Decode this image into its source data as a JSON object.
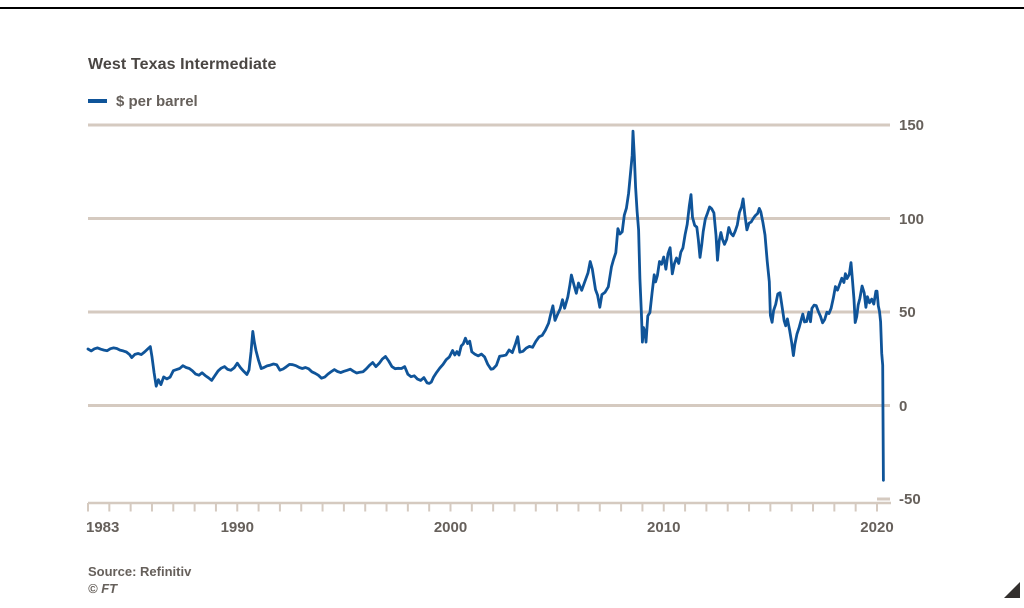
{
  "header": {
    "title": "West Texas Intermediate",
    "legend_label": "$ per barrel"
  },
  "footer": {
    "source": "Source: Refinitiv",
    "copyright": "© FT"
  },
  "colors": {
    "line": "#0f5499",
    "grid": "#d5cac0",
    "text": "#66605b",
    "title_text": "#4a4643",
    "top_rule": "#000000",
    "expand_icon": "#33302e"
  },
  "chart_data": {
    "type": "line",
    "title": "West Texas Intermediate",
    "series_name": "$ per barrel",
    "xlabel": "",
    "ylabel": "$ per barrel",
    "ylim": [
      -50,
      150
    ],
    "xlim": [
      1983,
      2020.6
    ],
    "grid": true,
    "legend_position": "top-left",
    "yticks": [
      {
        "label": "150",
        "value": 150,
        "grid": true
      },
      {
        "label": "100",
        "value": 100,
        "grid": true
      },
      {
        "label": "50",
        "value": 50,
        "grid": true
      },
      {
        "label": "0",
        "value": 0,
        "grid": true
      },
      {
        "label": "-50",
        "value": -50,
        "grid": false
      }
    ],
    "xticks": [
      {
        "label": "1983",
        "value": 1983,
        "align": "left"
      },
      {
        "label": "1990",
        "value": 1990,
        "align": "center"
      },
      {
        "label": "2000",
        "value": 2000,
        "align": "center"
      },
      {
        "label": "2010",
        "value": 2010,
        "align": "center"
      },
      {
        "label": "2020",
        "value": 2020,
        "align": "center"
      }
    ],
    "minor_tick_years": {
      "start": 1983,
      "end": 2020,
      "step": 1
    },
    "points": [
      [
        1983.0,
        30.2
      ],
      [
        1983.15,
        29.2
      ],
      [
        1983.3,
        30.3
      ],
      [
        1983.45,
        30.8
      ],
      [
        1983.6,
        30.1
      ],
      [
        1983.75,
        29.6
      ],
      [
        1983.9,
        29.3
      ],
      [
        1984.05,
        30.4
      ],
      [
        1984.2,
        30.8
      ],
      [
        1984.35,
        30.5
      ],
      [
        1984.5,
        29.6
      ],
      [
        1984.65,
        29.2
      ],
      [
        1984.8,
        28.6
      ],
      [
        1984.95,
        27.2
      ],
      [
        1985.05,
        25.6
      ],
      [
        1985.2,
        27.3
      ],
      [
        1985.35,
        27.8
      ],
      [
        1985.5,
        27.2
      ],
      [
        1985.65,
        28.6
      ],
      [
        1985.8,
        30.2
      ],
      [
        1985.92,
        31.5
      ],
      [
        1986.0,
        26.0
      ],
      [
        1986.1,
        17.5
      ],
      [
        1986.2,
        10.3
      ],
      [
        1986.3,
        13.8
      ],
      [
        1986.42,
        11.2
      ],
      [
        1986.55,
        15.3
      ],
      [
        1986.7,
        14.2
      ],
      [
        1986.85,
        15.2
      ],
      [
        1987.0,
        18.6
      ],
      [
        1987.15,
        19.2
      ],
      [
        1987.3,
        19.8
      ],
      [
        1987.45,
        21.3
      ],
      [
        1987.6,
        20.3
      ],
      [
        1987.75,
        19.8
      ],
      [
        1987.9,
        18.5
      ],
      [
        1988.05,
        16.8
      ],
      [
        1988.2,
        16.2
      ],
      [
        1988.35,
        17.5
      ],
      [
        1988.5,
        16.0
      ],
      [
        1988.65,
        14.8
      ],
      [
        1988.8,
        13.4
      ],
      [
        1988.95,
        16.0
      ],
      [
        1989.1,
        18.5
      ],
      [
        1989.25,
        20.0
      ],
      [
        1989.4,
        20.8
      ],
      [
        1989.55,
        19.3
      ],
      [
        1989.7,
        18.8
      ],
      [
        1989.85,
        20.1
      ],
      [
        1990.0,
        22.6
      ],
      [
        1990.15,
        20.2
      ],
      [
        1990.3,
        18.3
      ],
      [
        1990.45,
        16.6
      ],
      [
        1990.55,
        19.0
      ],
      [
        1990.65,
        29.0
      ],
      [
        1990.73,
        39.6
      ],
      [
        1990.8,
        34.0
      ],
      [
        1990.88,
        29.3
      ],
      [
        1991.0,
        24.0
      ],
      [
        1991.12,
        19.8
      ],
      [
        1991.25,
        20.3
      ],
      [
        1991.4,
        21.2
      ],
      [
        1991.55,
        21.6
      ],
      [
        1991.7,
        22.2
      ],
      [
        1991.85,
        21.8
      ],
      [
        1992.0,
        18.9
      ],
      [
        1992.15,
        19.5
      ],
      [
        1992.3,
        20.7
      ],
      [
        1992.45,
        22.0
      ],
      [
        1992.6,
        21.8
      ],
      [
        1992.75,
        21.3
      ],
      [
        1992.9,
        20.4
      ],
      [
        1993.05,
        19.8
      ],
      [
        1993.2,
        20.3
      ],
      [
        1993.35,
        19.6
      ],
      [
        1993.5,
        18.0
      ],
      [
        1993.65,
        17.2
      ],
      [
        1993.8,
        16.2
      ],
      [
        1993.95,
        14.6
      ],
      [
        1994.1,
        15.2
      ],
      [
        1994.25,
        16.8
      ],
      [
        1994.4,
        18.0
      ],
      [
        1994.55,
        19.2
      ],
      [
        1994.7,
        18.2
      ],
      [
        1994.85,
        17.6
      ],
      [
        1995.0,
        18.3
      ],
      [
        1995.15,
        18.8
      ],
      [
        1995.3,
        19.4
      ],
      [
        1995.45,
        18.3
      ],
      [
        1995.6,
        17.4
      ],
      [
        1995.75,
        17.8
      ],
      [
        1995.9,
        18.1
      ],
      [
        1996.05,
        19.6
      ],
      [
        1996.2,
        21.5
      ],
      [
        1996.35,
        23.0
      ],
      [
        1996.5,
        20.8
      ],
      [
        1996.65,
        22.5
      ],
      [
        1996.8,
        24.8
      ],
      [
        1996.95,
        26.2
      ],
      [
        1997.1,
        23.8
      ],
      [
        1997.25,
        20.8
      ],
      [
        1997.4,
        19.7
      ],
      [
        1997.55,
        19.9
      ],
      [
        1997.7,
        19.8
      ],
      [
        1997.85,
        20.8
      ],
      [
        1998.0,
        16.7
      ],
      [
        1998.15,
        15.4
      ],
      [
        1998.3,
        15.9
      ],
      [
        1998.45,
        14.1
      ],
      [
        1998.6,
        13.4
      ],
      [
        1998.75,
        14.9
      ],
      [
        1998.9,
        12.1
      ],
      [
        1999.0,
        11.8
      ],
      [
        1999.1,
        12.5
      ],
      [
        1999.2,
        15.0
      ],
      [
        1999.35,
        17.7
      ],
      [
        1999.5,
        20.0
      ],
      [
        1999.65,
        22.0
      ],
      [
        1999.8,
        24.5
      ],
      [
        1999.95,
        26.0
      ],
      [
        2000.1,
        29.4
      ],
      [
        2000.2,
        27.0
      ],
      [
        2000.3,
        28.8
      ],
      [
        2000.4,
        27.0
      ],
      [
        2000.5,
        31.8
      ],
      [
        2000.6,
        33.0
      ],
      [
        2000.7,
        36.0
      ],
      [
        2000.8,
        33.1
      ],
      [
        2000.9,
        34.4
      ],
      [
        2001.0,
        28.7
      ],
      [
        2001.15,
        27.4
      ],
      [
        2001.3,
        26.5
      ],
      [
        2001.45,
        27.5
      ],
      [
        2001.6,
        26.0
      ],
      [
        2001.75,
        22.0
      ],
      [
        2001.9,
        19.4
      ],
      [
        2002.0,
        19.7
      ],
      [
        2002.15,
        21.5
      ],
      [
        2002.3,
        26.3
      ],
      [
        2002.45,
        26.6
      ],
      [
        2002.6,
        27.0
      ],
      [
        2002.75,
        29.7
      ],
      [
        2002.9,
        28.3
      ],
      [
        2003.05,
        33.0
      ],
      [
        2003.15,
        36.8
      ],
      [
        2003.25,
        28.5
      ],
      [
        2003.4,
        29.0
      ],
      [
        2003.55,
        30.7
      ],
      [
        2003.7,
        31.6
      ],
      [
        2003.85,
        31.1
      ],
      [
        2004.0,
        34.3
      ],
      [
        2004.15,
        36.7
      ],
      [
        2004.3,
        37.5
      ],
      [
        2004.45,
        40.3
      ],
      [
        2004.6,
        44.0
      ],
      [
        2004.7,
        48.8
      ],
      [
        2004.8,
        53.3
      ],
      [
        2004.9,
        45.5
      ],
      [
        2005.0,
        48.2
      ],
      [
        2005.15,
        51.9
      ],
      [
        2005.25,
        56.6
      ],
      [
        2005.35,
        52.0
      ],
      [
        2005.5,
        58.0
      ],
      [
        2005.6,
        64.5
      ],
      [
        2005.67,
        69.8
      ],
      [
        2005.8,
        64.0
      ],
      [
        2005.9,
        60.0
      ],
      [
        2006.0,
        65.5
      ],
      [
        2006.15,
        61.6
      ],
      [
        2006.3,
        66.2
      ],
      [
        2006.45,
        70.9
      ],
      [
        2006.55,
        77.0
      ],
      [
        2006.65,
        73.0
      ],
      [
        2006.8,
        62.0
      ],
      [
        2006.9,
        59.0
      ],
      [
        2007.0,
        52.5
      ],
      [
        2007.1,
        59.3
      ],
      [
        2007.25,
        60.6
      ],
      [
        2007.4,
        63.5
      ],
      [
        2007.55,
        74.2
      ],
      [
        2007.65,
        78.2
      ],
      [
        2007.75,
        81.7
      ],
      [
        2007.85,
        94.6
      ],
      [
        2007.95,
        91.7
      ],
      [
        2008.05,
        92.9
      ],
      [
        2008.15,
        101.8
      ],
      [
        2008.25,
        105.5
      ],
      [
        2008.35,
        113.5
      ],
      [
        2008.45,
        125.4
      ],
      [
        2008.52,
        133.9
      ],
      [
        2008.56,
        146.7
      ],
      [
        2008.62,
        133.4
      ],
      [
        2008.68,
        116.7
      ],
      [
        2008.75,
        103.8
      ],
      [
        2008.82,
        93.9
      ],
      [
        2008.88,
        67.8
      ],
      [
        2008.95,
        49.3
      ],
      [
        2009.0,
        33.9
      ],
      [
        2009.05,
        41.7
      ],
      [
        2009.12,
        39.1
      ],
      [
        2009.17,
        33.9
      ],
      [
        2009.25,
        47.9
      ],
      [
        2009.35,
        49.7
      ],
      [
        2009.45,
        59.9
      ],
      [
        2009.55,
        69.9
      ],
      [
        2009.62,
        66.1
      ],
      [
        2009.7,
        69.5
      ],
      [
        2009.8,
        77.0
      ],
      [
        2009.9,
        75.5
      ],
      [
        2010.0,
        79.4
      ],
      [
        2010.1,
        72.9
      ],
      [
        2010.2,
        81.2
      ],
      [
        2010.3,
        84.4
      ],
      [
        2010.4,
        70.4
      ],
      [
        2010.5,
        75.9
      ],
      [
        2010.6,
        78.9
      ],
      [
        2010.7,
        76.0
      ],
      [
        2010.8,
        81.9
      ],
      [
        2010.9,
        84.2
      ],
      [
        2011.0,
        91.4
      ],
      [
        2011.1,
        96.9
      ],
      [
        2011.2,
        106.7
      ],
      [
        2011.28,
        112.8
      ],
      [
        2011.35,
        100.6
      ],
      [
        2011.45,
        96.3
      ],
      [
        2011.55,
        95.4
      ],
      [
        2011.62,
        88.9
      ],
      [
        2011.7,
        79.2
      ],
      [
        2011.78,
        85.8
      ],
      [
        2011.85,
        93.0
      ],
      [
        2011.95,
        99.7
      ],
      [
        2012.05,
        102.9
      ],
      [
        2012.15,
        106.2
      ],
      [
        2012.25,
        105.2
      ],
      [
        2012.35,
        103.0
      ],
      [
        2012.45,
        91.0
      ],
      [
        2012.52,
        77.7
      ],
      [
        2012.6,
        88.0
      ],
      [
        2012.68,
        92.5
      ],
      [
        2012.75,
        89.0
      ],
      [
        2012.85,
        86.2
      ],
      [
        2012.95,
        88.9
      ],
      [
        2013.05,
        95.2
      ],
      [
        2013.15,
        92.1
      ],
      [
        2013.25,
        90.7
      ],
      [
        2013.35,
        93.2
      ],
      [
        2013.45,
        96.6
      ],
      [
        2013.55,
        103.2
      ],
      [
        2013.65,
        106.3
      ],
      [
        2013.72,
        110.5
      ],
      [
        2013.8,
        102.3
      ],
      [
        2013.9,
        93.9
      ],
      [
        2014.0,
        97.5
      ],
      [
        2014.1,
        98.2
      ],
      [
        2014.2,
        100.1
      ],
      [
        2014.3,
        101.6
      ],
      [
        2014.4,
        102.7
      ],
      [
        2014.48,
        105.4
      ],
      [
        2014.55,
        103.6
      ],
      [
        2014.65,
        97.9
      ],
      [
        2014.75,
        91.2
      ],
      [
        2014.85,
        77.2
      ],
      [
        2014.95,
        66.2
      ],
      [
        2015.0,
        48.2
      ],
      [
        2015.08,
        44.5
      ],
      [
        2015.15,
        50.8
      ],
      [
        2015.25,
        54.1
      ],
      [
        2015.35,
        59.6
      ],
      [
        2015.45,
        60.3
      ],
      [
        2015.55,
        52.8
      ],
      [
        2015.65,
        45.2
      ],
      [
        2015.72,
        42.6
      ],
      [
        2015.8,
        46.3
      ],
      [
        2015.9,
        40.4
      ],
      [
        2016.0,
        33.6
      ],
      [
        2016.08,
        26.7
      ],
      [
        2016.15,
        32.8
      ],
      [
        2016.25,
        38.3
      ],
      [
        2016.35,
        41.8
      ],
      [
        2016.45,
        46.0
      ],
      [
        2016.52,
        48.9
      ],
      [
        2016.6,
        44.7
      ],
      [
        2016.7,
        44.9
      ],
      [
        2016.8,
        49.9
      ],
      [
        2016.88,
        44.8
      ],
      [
        2016.95,
        51.9
      ],
      [
        2017.05,
        53.7
      ],
      [
        2017.15,
        53.4
      ],
      [
        2017.25,
        50.3
      ],
      [
        2017.35,
        47.7
      ],
      [
        2017.45,
        44.2
      ],
      [
        2017.55,
        46.0
      ],
      [
        2017.65,
        49.9
      ],
      [
        2017.75,
        49.2
      ],
      [
        2017.85,
        52.0
      ],
      [
        2017.95,
        57.4
      ],
      [
        2018.05,
        63.6
      ],
      [
        2018.15,
        61.7
      ],
      [
        2018.25,
        64.9
      ],
      [
        2018.35,
        68.1
      ],
      [
        2018.45,
        65.8
      ],
      [
        2018.52,
        70.5
      ],
      [
        2018.6,
        67.9
      ],
      [
        2018.7,
        70.1
      ],
      [
        2018.78,
        76.4
      ],
      [
        2018.85,
        66.8
      ],
      [
        2018.92,
        56.7
      ],
      [
        2018.98,
        44.4
      ],
      [
        2019.05,
        47.5
      ],
      [
        2019.12,
        53.8
      ],
      [
        2019.2,
        57.3
      ],
      [
        2019.3,
        63.9
      ],
      [
        2019.4,
        60.2
      ],
      [
        2019.48,
        52.5
      ],
      [
        2019.55,
        58.2
      ],
      [
        2019.65,
        54.9
      ],
      [
        2019.75,
        56.9
      ],
      [
        2019.85,
        54.2
      ],
      [
        2019.95,
        61.1
      ],
      [
        2020.0,
        61.2
      ],
      [
        2020.06,
        53.3
      ],
      [
        2020.12,
        50.3
      ],
      [
        2020.17,
        44.8
      ],
      [
        2020.22,
        28.0
      ],
      [
        2020.27,
        21.5
      ],
      [
        2020.3,
        -40.0
      ]
    ]
  }
}
